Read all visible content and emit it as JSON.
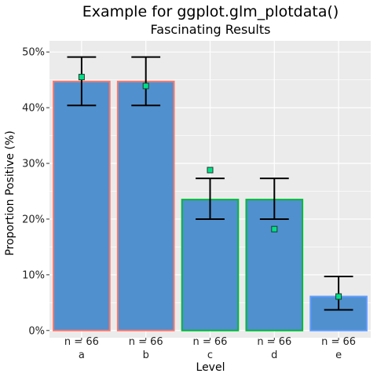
{
  "chart_data": {
    "type": "bar",
    "title": "Example for ggplot.glm_plotdata()",
    "subtitle": "Fascinating Results",
    "xlabel": "Level",
    "ylabel": "Proportion Positive (%)",
    "categories": [
      "a",
      "b",
      "c",
      "d",
      "e"
    ],
    "values": [
      44.7,
      44.7,
      23.5,
      23.5,
      6.1
    ],
    "error_low": [
      40.4,
      40.4,
      20.0,
      20.0,
      3.7
    ],
    "error_high": [
      49.1,
      49.1,
      27.3,
      27.3,
      9.7
    ],
    "observed": [
      45.5,
      43.9,
      28.8,
      18.2,
      6.1
    ],
    "n_labels": [
      "n = 66",
      "n = 66",
      "n = 66",
      "n = 66",
      "n = 66"
    ],
    "ylim": [
      -1.3,
      52
    ],
    "yticks": [
      0,
      10,
      20,
      30,
      40,
      50
    ],
    "ytick_labels": [
      "0%",
      "10%",
      "20%",
      "30%",
      "40%",
      "50%"
    ],
    "grid": true,
    "colors": {
      "panel_bg": "#EBEBEB",
      "grid": "#FFFFFF",
      "bar_fill": "#5090CE",
      "outline": [
        "#F8766D",
        "#F8766D",
        "#00BA38",
        "#00BA38",
        "#619CFF"
      ],
      "error_bar": "#000000",
      "point_fill": "#00E08A",
      "point_stroke": "#1F3A2A"
    }
  }
}
